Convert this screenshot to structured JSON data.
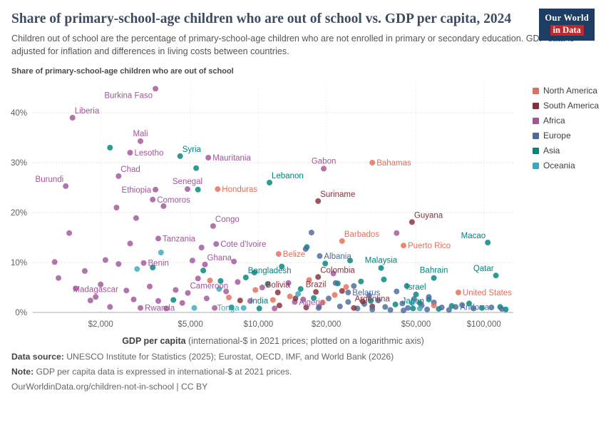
{
  "header": {
    "title": "Share of primary-school-age children who are out of school vs. GDP per capita, 2024",
    "subtitle": "Children out of school are the percentage of primary-school-age children who are not enrolled in primary or secondary education. GDP data is adjusted for inflation and differences in living costs between countries.",
    "logo_line1": "Our World",
    "logo_line2": "in Data"
  },
  "footer": {
    "source_label": "Data source:",
    "source_text": " UNESCO Institute for Statistics (2025); Eurostat, OECD, IMF, and World Bank (2026)",
    "note_label": "Note:",
    "note_text": " GDP per capita data is expressed in international-$ at 2021 prices.",
    "link": "OurWorldinData.org/children-not-in-school | CC BY"
  },
  "chart_data": {
    "type": "scatter",
    "ylabel": "Share of primary-school-age children who are out of school",
    "xlabel_bold": "GDP per capita",
    "xlabel_rest": " (international-$ in 2021 prices; plotted on a logarithmic axis)",
    "x_scale": "log",
    "xlim": [
      1000,
      135000
    ],
    "ylim": [
      0,
      46
    ],
    "x_ticks": [
      {
        "v": 2000,
        "label": "$2,000"
      },
      {
        "v": 5000,
        "label": "$5,000"
      },
      {
        "v": 10000,
        "label": "$10,000"
      },
      {
        "v": 20000,
        "label": "$20,000"
      },
      {
        "v": 50000,
        "label": "$50,000"
      },
      {
        "v": 100000,
        "label": "$100,000"
      }
    ],
    "y_ticks": [
      {
        "v": 0,
        "label": "0%"
      },
      {
        "v": 10,
        "label": "10%"
      },
      {
        "v": 20,
        "label": "20%"
      },
      {
        "v": 30,
        "label": "30%"
      },
      {
        "v": 40,
        "label": "40%"
      }
    ],
    "regions": {
      "North America": "#E56E5A",
      "South America": "#883039",
      "Africa": "#A2559C",
      "Europe": "#4C6A9C",
      "Asia": "#00847E",
      "Oceania": "#38AABA"
    },
    "legend": [
      "North America",
      "South America",
      "Africa",
      "Europe",
      "Asia",
      "Oceania"
    ],
    "points": [
      {
        "name": "Burkina Faso",
        "region": "Africa",
        "gdp": 3500,
        "share": 44.8,
        "lp": "bl"
      },
      {
        "name": "Liberia",
        "region": "Africa",
        "gdp": 1500,
        "share": 39,
        "lp": "ar"
      },
      {
        "name": "Mali",
        "region": "Africa",
        "gdp": 3000,
        "share": 34.3,
        "lp": "a"
      },
      {
        "name": "Lesotho",
        "region": "Africa",
        "gdp": 2700,
        "share": 32,
        "lp": "r"
      },
      {
        "name": "Syria",
        "region": "Asia",
        "gdp": 4500,
        "share": 31.3,
        "lp": "ar"
      },
      {
        "name": "Mauritania",
        "region": "Africa",
        "gdp": 6000,
        "share": 31,
        "lp": "r"
      },
      {
        "name": "Chad",
        "region": "Africa",
        "gdp": 2400,
        "share": 27.3,
        "lp": "ar"
      },
      {
        "name": "Gabon",
        "region": "Africa",
        "gdp": 19500,
        "share": 28.8,
        "lp": "a"
      },
      {
        "name": "Bahamas",
        "region": "North America",
        "gdp": 32000,
        "share": 30,
        "lp": "r"
      },
      {
        "name": "Lebanon",
        "region": "Asia",
        "gdp": 11200,
        "share": 26,
        "lp": "ar"
      },
      {
        "name": "Ethiopia",
        "region": "Africa",
        "gdp": 3500,
        "share": 24.6,
        "lp": "l"
      },
      {
        "name": "Senegal",
        "region": "Africa",
        "gdp": 4850,
        "share": 24.7,
        "lp": "a"
      },
      {
        "name": "Honduras",
        "region": "North America",
        "gdp": 6600,
        "share": 24.7,
        "lp": "r"
      },
      {
        "name": "Suriname",
        "region": "South America",
        "gdp": 18400,
        "share": 22.3,
        "lp": "ar"
      },
      {
        "name": "Burundi",
        "region": "Africa",
        "gdp": 1400,
        "share": 25.3,
        "lp": "al"
      },
      {
        "name": "Comoros",
        "region": "Africa",
        "gdp": 3400,
        "share": 22.6,
        "lp": "r"
      },
      {
        "name": "Congo",
        "region": "Africa",
        "gdp": 6300,
        "share": 17.3,
        "lp": "ar"
      },
      {
        "name": "Guyana",
        "region": "South America",
        "gdp": 48000,
        "share": 18.1,
        "lp": "ar"
      },
      {
        "name": "Tanzania",
        "region": "Africa",
        "gdp": 3600,
        "share": 14.8,
        "lp": "r"
      },
      {
        "name": "Cote d'Ivoire",
        "region": "Africa",
        "gdp": 6500,
        "share": 13.7,
        "lp": "r"
      },
      {
        "name": "Barbados",
        "region": "North America",
        "gdp": 23500,
        "share": 14.3,
        "lp": "ar"
      },
      {
        "name": "Puerto Rico",
        "region": "North America",
        "gdp": 44000,
        "share": 13.4,
        "lp": "r"
      },
      {
        "name": "Macao",
        "region": "Asia",
        "gdp": 104000,
        "share": 14,
        "lp": "al"
      },
      {
        "name": "Belize",
        "region": "North America",
        "gdp": 12300,
        "share": 11.7,
        "lp": "r"
      },
      {
        "name": "Albania",
        "region": "Europe",
        "gdp": 18700,
        "share": 11.3,
        "lp": "r"
      },
      {
        "name": "Benin",
        "region": "Africa",
        "gdp": 3100,
        "share": 9.9,
        "lp": "r"
      },
      {
        "name": "Ghana",
        "region": "Africa",
        "gdp": 5800,
        "share": 9.6,
        "lp": "ar"
      },
      {
        "name": "Malaysia",
        "region": "Asia",
        "gdp": 35000,
        "share": 8.9,
        "lp": "a"
      },
      {
        "name": "Bahrain",
        "region": "Asia",
        "gdp": 60000,
        "share": 6.9,
        "lp": "a"
      },
      {
        "name": "Qatar",
        "region": "Asia",
        "gdp": 113000,
        "share": 7.4,
        "lp": "al"
      },
      {
        "name": "Bangladesh",
        "region": "Asia",
        "gdp": 8800,
        "share": 7,
        "lp": "ar"
      },
      {
        "name": "Colombia",
        "region": "South America",
        "gdp": 18400,
        "share": 7.1,
        "lp": "ar"
      },
      {
        "name": "Madagascar",
        "region": "Africa",
        "gdp": 1900,
        "share": 3.1,
        "lp": "a"
      },
      {
        "name": "Cameroon",
        "region": "Africa",
        "gdp": 4870,
        "share": 3.9,
        "lp": "ar"
      },
      {
        "name": "Bolivia",
        "region": "South America",
        "gdp": 12200,
        "share": 4,
        "lp": "a"
      },
      {
        "name": "Brazil",
        "region": "South America",
        "gdp": 18000,
        "share": 4.1,
        "lp": "a"
      },
      {
        "name": "Belarus",
        "region": "Europe",
        "gdp": 25000,
        "share": 4,
        "lp": "r"
      },
      {
        "name": "Israel",
        "region": "Asia",
        "gdp": 50000,
        "share": 3.6,
        "lp": "a"
      },
      {
        "name": "United States",
        "region": "North America",
        "gdp": 77000,
        "share": 4,
        "lp": "r"
      },
      {
        "name": "Rwanda",
        "region": "Africa",
        "gdp": 3000,
        "share": 0.9,
        "lp": "r"
      },
      {
        "name": "Tonga",
        "region": "Oceania",
        "gdp": 8600,
        "share": 0.9,
        "lp": "l"
      },
      {
        "name": "India",
        "region": "Asia",
        "gdp": 10100,
        "share": 0.8,
        "lp": "a"
      },
      {
        "name": "Algeria",
        "region": "Africa",
        "gdp": 14500,
        "share": 2.1,
        "lp": "r"
      },
      {
        "name": "Argentina",
        "region": "South America",
        "gdp": 32000,
        "share": 1.2,
        "lp": "a"
      },
      {
        "name": "Japan",
        "region": "Asia",
        "gdp": 48500,
        "share": 0.8,
        "lp": "a"
      },
      {
        "name": "Andorra",
        "region": "Europe",
        "gdp": 75000,
        "share": 1.1,
        "lp": "r"
      },
      {
        "region": "Africa",
        "gdp": 1250,
        "share": 10.1
      },
      {
        "region": "Africa",
        "gdp": 1300,
        "share": 6.9
      },
      {
        "region": "Africa",
        "gdp": 1450,
        "share": 15.9
      },
      {
        "region": "Africa",
        "gdp": 1550,
        "share": 4.8
      },
      {
        "region": "Africa",
        "gdp": 1700,
        "share": 8.3
      },
      {
        "region": "Africa",
        "gdp": 1800,
        "share": 2.4
      },
      {
        "region": "Africa",
        "gdp": 2000,
        "share": 5.6
      },
      {
        "region": "Africa",
        "gdp": 2100,
        "share": 10.5
      },
      {
        "region": "Africa",
        "gdp": 2200,
        "share": 1.1
      },
      {
        "region": "Africa",
        "gdp": 2350,
        "share": 21
      },
      {
        "region": "Africa",
        "gdp": 2400,
        "share": 9.7
      },
      {
        "region": "Africa",
        "gdp": 2600,
        "share": 4.4
      },
      {
        "region": "Africa",
        "gdp": 2700,
        "share": 13.8
      },
      {
        "region": "Africa",
        "gdp": 2800,
        "share": 2.6
      },
      {
        "region": "Africa",
        "gdp": 2870,
        "share": 18.9
      },
      {
        "region": "Africa",
        "gdp": 3300,
        "share": 5.2
      },
      {
        "region": "Africa",
        "gdp": 3600,
        "share": 2.3
      },
      {
        "region": "Africa",
        "gdp": 3800,
        "share": 21.3
      },
      {
        "region": "Africa",
        "gdp": 3900,
        "share": 0.8
      },
      {
        "region": "Africa",
        "gdp": 4300,
        "share": 4.5
      },
      {
        "region": "Africa",
        "gdp": 4600,
        "share": 1.9
      },
      {
        "region": "Africa",
        "gdp": 5100,
        "share": 10.4
      },
      {
        "region": "Africa",
        "gdp": 5400,
        "share": 6.8
      },
      {
        "region": "Africa",
        "gdp": 5600,
        "share": 13
      },
      {
        "region": "Africa",
        "gdp": 5900,
        "share": 2.8
      },
      {
        "region": "Africa",
        "gdp": 6400,
        "share": 0.9
      },
      {
        "region": "Africa",
        "gdp": 7200,
        "share": 4.2
      },
      {
        "region": "Africa",
        "gdp": 7800,
        "share": 10.2
      },
      {
        "region": "Africa",
        "gdp": 8100,
        "share": 6.1
      },
      {
        "region": "Africa",
        "gdp": 9200,
        "share": 2.3
      },
      {
        "region": "Africa",
        "gdp": 10400,
        "share": 5
      },
      {
        "region": "Africa",
        "gdp": 11800,
        "share": 0.8
      },
      {
        "region": "Africa",
        "gdp": 13600,
        "share": 5.9
      },
      {
        "region": "Africa",
        "gdp": 15800,
        "share": 2.6
      },
      {
        "region": "Africa",
        "gdp": 18600,
        "share": 1.2
      },
      {
        "region": "Africa",
        "gdp": 21500,
        "share": 7.8
      },
      {
        "region": "Africa",
        "gdp": 41000,
        "share": 15.9
      },
      {
        "region": "Asia",
        "gdp": 2200,
        "share": 33
      },
      {
        "region": "Asia",
        "gdp": 3400,
        "share": 9
      },
      {
        "region": "Asia",
        "gdp": 4200,
        "share": 2.5
      },
      {
        "region": "Asia",
        "gdp": 5300,
        "share": 28.9
      },
      {
        "region": "Asia",
        "gdp": 5400,
        "share": 24.6
      },
      {
        "region": "Asia",
        "gdp": 5700,
        "share": 8.4
      },
      {
        "region": "Asia",
        "gdp": 6800,
        "share": 6.3
      },
      {
        "region": "Asia",
        "gdp": 7600,
        "share": 1
      },
      {
        "region": "Asia",
        "gdp": 9600,
        "share": 8
      },
      {
        "region": "Asia",
        "gdp": 11000,
        "share": 5.7
      },
      {
        "region": "Asia",
        "gdp": 12700,
        "share": 9.2
      },
      {
        "region": "Asia",
        "gdp": 15400,
        "share": 4.7
      },
      {
        "region": "Asia",
        "gdp": 16400,
        "share": 13.1
      },
      {
        "region": "Asia",
        "gdp": 17600,
        "share": 2.9
      },
      {
        "region": "Asia",
        "gdp": 19800,
        "share": 9.8
      },
      {
        "region": "Asia",
        "gdp": 22500,
        "share": 5.8
      },
      {
        "region": "Asia",
        "gdp": 25500,
        "share": 10.4
      },
      {
        "region": "Asia",
        "gdp": 28500,
        "share": 6.2
      },
      {
        "region": "Asia",
        "gdp": 31500,
        "share": 2.3
      },
      {
        "region": "Asia",
        "gdp": 36000,
        "share": 6.6
      },
      {
        "region": "Asia",
        "gdp": 40500,
        "share": 1.6
      },
      {
        "region": "Asia",
        "gdp": 45500,
        "share": 5.3
      },
      {
        "region": "Asia",
        "gdp": 52000,
        "share": 1.9
      },
      {
        "region": "Asia",
        "gdp": 57000,
        "share": 2.6
      },
      {
        "region": "Asia",
        "gdp": 63000,
        "share": 0.7
      },
      {
        "region": "Asia",
        "gdp": 72000,
        "share": 1.3
      },
      {
        "region": "Asia",
        "gdp": 86000,
        "share": 1.8
      },
      {
        "region": "Asia",
        "gdp": 98000,
        "share": 0.9
      },
      {
        "region": "Asia",
        "gdp": 118000,
        "share": 1.1
      },
      {
        "region": "Asia",
        "gdp": 125000,
        "share": 0.6
      },
      {
        "region": "Europe",
        "gdp": 16200,
        "share": 12.7
      },
      {
        "region": "Europe",
        "gdp": 17200,
        "share": 16
      },
      {
        "region": "Europe",
        "gdp": 18500,
        "share": 0.9
      },
      {
        "region": "Europe",
        "gdp": 20500,
        "share": 2.8
      },
      {
        "region": "Europe",
        "gdp": 22000,
        "share": 5.9
      },
      {
        "region": "Europe",
        "gdp": 23000,
        "share": 1.2
      },
      {
        "region": "Europe",
        "gdp": 25000,
        "share": 2.1
      },
      {
        "region": "Europe",
        "gdp": 26500,
        "share": 5.3
      },
      {
        "region": "Europe",
        "gdp": 27500,
        "share": 0.8
      },
      {
        "region": "Europe",
        "gdp": 29500,
        "share": 1.7
      },
      {
        "region": "Europe",
        "gdp": 31000,
        "share": 3.4
      },
      {
        "region": "Europe",
        "gdp": 32000,
        "share": 0.6
      },
      {
        "region": "Europe",
        "gdp": 34000,
        "share": 2.4
      },
      {
        "region": "Europe",
        "gdp": 36500,
        "share": 1.1
      },
      {
        "region": "Europe",
        "gdp": 38500,
        "share": 0.5
      },
      {
        "region": "Europe",
        "gdp": 41000,
        "share": 4.2
      },
      {
        "region": "Europe",
        "gdp": 43500,
        "share": 1.8
      },
      {
        "region": "Europe",
        "gdp": 44000,
        "share": 0.4
      },
      {
        "region": "Europe",
        "gdp": 46000,
        "share": 0.9
      },
      {
        "region": "Europe",
        "gdp": 49000,
        "share": 2.7
      },
      {
        "region": "Europe",
        "gdp": 53000,
        "share": 1.4
      },
      {
        "region": "Europe",
        "gdp": 56000,
        "share": 0.6
      },
      {
        "region": "Europe",
        "gdp": 57000,
        "share": 3.1
      },
      {
        "region": "Europe",
        "gdp": 60000,
        "share": 2
      },
      {
        "region": "Europe",
        "gdp": 65000,
        "share": 1
      },
      {
        "region": "Europe",
        "gdp": 70000,
        "share": 0.5
      },
      {
        "region": "Europe",
        "gdp": 80000,
        "share": 1.5
      },
      {
        "region": "Europe",
        "gdp": 90000,
        "share": 0.8
      },
      {
        "region": "Europe",
        "gdp": 108000,
        "share": 1
      },
      {
        "region": "Europe",
        "gdp": 120000,
        "share": 0.7
      },
      {
        "region": "North America",
        "gdp": 6100,
        "share": 6.4
      },
      {
        "region": "North America",
        "gdp": 7400,
        "share": 3
      },
      {
        "region": "North America",
        "gdp": 9700,
        "share": 4.5
      },
      {
        "region": "North America",
        "gdp": 11600,
        "share": 2.5
      },
      {
        "region": "North America",
        "gdp": 13800,
        "share": 3.2
      },
      {
        "region": "North America",
        "gdp": 16800,
        "share": 6.5
      },
      {
        "region": "North America",
        "gdp": 19300,
        "share": 2
      },
      {
        "region": "North America",
        "gdp": 21800,
        "share": 3.5
      },
      {
        "region": "North America",
        "gdp": 24500,
        "share": 5.1
      },
      {
        "region": "North America",
        "gdp": 60000,
        "share": 1.4
      },
      {
        "region": "South America",
        "gdp": 8300,
        "share": 2.4
      },
      {
        "region": "South America",
        "gdp": 12400,
        "share": 1.4
      },
      {
        "region": "South America",
        "gdp": 14600,
        "share": 2.8
      },
      {
        "region": "South America",
        "gdp": 16300,
        "share": 1
      },
      {
        "region": "South America",
        "gdp": 23500,
        "share": 4.3
      },
      {
        "region": "South America",
        "gdp": 26500,
        "share": 0.9
      },
      {
        "region": "South America",
        "gdp": 29000,
        "share": 2.2
      },
      {
        "region": "Oceania",
        "gdp": 2900,
        "share": 8.7
      },
      {
        "region": "Oceania",
        "gdp": 3700,
        "share": 12
      },
      {
        "region": "Oceania",
        "gdp": 5200,
        "share": 0.9
      },
      {
        "region": "Oceania",
        "gdp": 6700,
        "share": 4.7
      },
      {
        "region": "Oceania",
        "gdp": 15000,
        "share": 3.7
      },
      {
        "region": "Oceania",
        "gdp": 48000,
        "share": 1.9
      },
      {
        "region": "Oceania",
        "gdp": 52000,
        "share": 0.8
      }
    ]
  }
}
